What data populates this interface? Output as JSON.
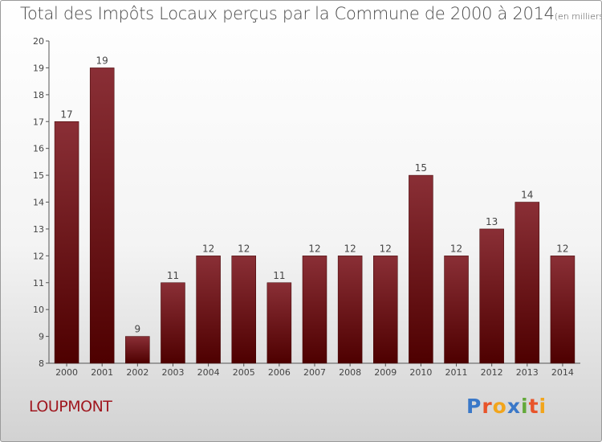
{
  "title": "Total des Impôts Locaux perçus par la Commune de 2000 à 2014",
  "unit": "(en milliers d'€)",
  "commune": "LOUPMONT",
  "logo": {
    "text": "Proxiti",
    "letter_colors": [
      "#3a78c8",
      "#e8542a",
      "#f2a51c",
      "#3a78c8",
      "#63a93a",
      "#e8542a",
      "#f2a51c"
    ]
  },
  "colors": {
    "bar_top": "#8a2f36",
    "bar_bottom": "#4e0000",
    "axis": "#555555",
    "label": "#444444"
  },
  "chart_data": {
    "type": "bar",
    "categories": [
      "2000",
      "2001",
      "2002",
      "2003",
      "2004",
      "2005",
      "2006",
      "2007",
      "2008",
      "2009",
      "2010",
      "2011",
      "2012",
      "2013",
      "2014"
    ],
    "values": [
      17,
      19,
      9,
      11,
      12,
      12,
      11,
      12,
      12,
      12,
      15,
      12,
      13,
      14,
      12
    ],
    "yticks": [
      8,
      9,
      10,
      11,
      12,
      13,
      14,
      15,
      16,
      17,
      18,
      19,
      20
    ],
    "ylim": [
      8,
      20
    ],
    "grid": false,
    "data_labels": true
  }
}
